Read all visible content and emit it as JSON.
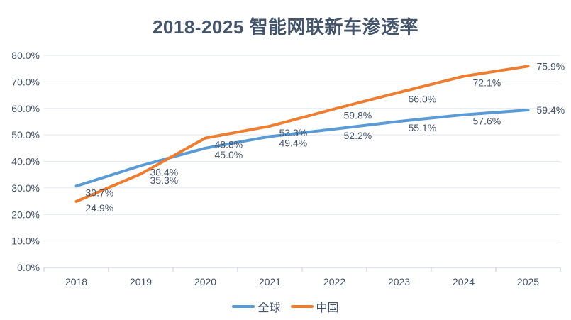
{
  "chart_data": {
    "type": "line",
    "title": "2018-2025 智能网联新车渗透率",
    "categories": [
      "2018",
      "2019",
      "2020",
      "2021",
      "2022",
      "2023",
      "2024",
      "2025"
    ],
    "series": [
      {
        "key": "global",
        "name": "全球",
        "color": "#5B9BD5",
        "values": [
          30.7,
          38.4,
          45.0,
          49.4,
          52.2,
          55.1,
          57.6,
          59.4
        ],
        "data_labels": [
          "30.7%",
          "38.4%",
          "45.0%",
          "49.4%",
          "52.2%",
          "55.1%",
          "57.6%",
          "59.4%"
        ]
      },
      {
        "key": "china",
        "name": "中国",
        "color": "#ED7D31",
        "values": [
          24.9,
          35.3,
          48.8,
          53.3,
          59.8,
          66.0,
          72.1,
          75.9
        ],
        "data_labels": [
          "24.9%",
          "35.3%",
          "48.8%",
          "53.3%",
          "59.8%",
          "66.0%",
          "72.1%",
          "75.9%"
        ]
      }
    ],
    "ylim": [
      0,
      80
    ],
    "ytick_step": 10,
    "ytick_labels": [
      "0.0%",
      "10.0%",
      "20.0%",
      "30.0%",
      "40.0%",
      "50.0%",
      "60.0%",
      "70.0%",
      "80.0%"
    ],
    "grid": true,
    "legend_position": "bottom",
    "colors": {
      "text": "#44546A",
      "gridline": "#E2E8F1",
      "axis_line": "#C9D2E0",
      "background": "#FFFFFF"
    }
  }
}
